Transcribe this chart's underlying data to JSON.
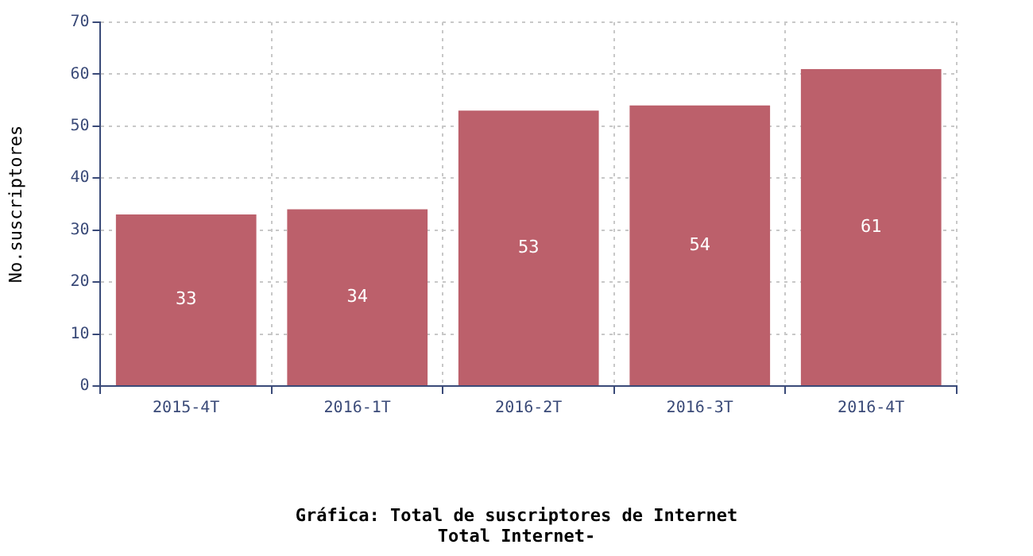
{
  "chart_data": {
    "type": "bar",
    "title": "Gráfica: Total de suscriptores de Internet",
    "subtitle": "Total Internet-",
    "ylabel": "No.suscriptores",
    "categories": [
      "2015-4T",
      "2016-1T",
      "2016-2T",
      "2016-3T",
      "2016-4T"
    ],
    "values": [
      33,
      34,
      53,
      54,
      61
    ],
    "color": "#bc606b",
    "ylim": [
      0,
      70
    ],
    "yticks": [
      0,
      10,
      20,
      30,
      40,
      50,
      60,
      70
    ],
    "grid": true,
    "data_labels": true
  }
}
